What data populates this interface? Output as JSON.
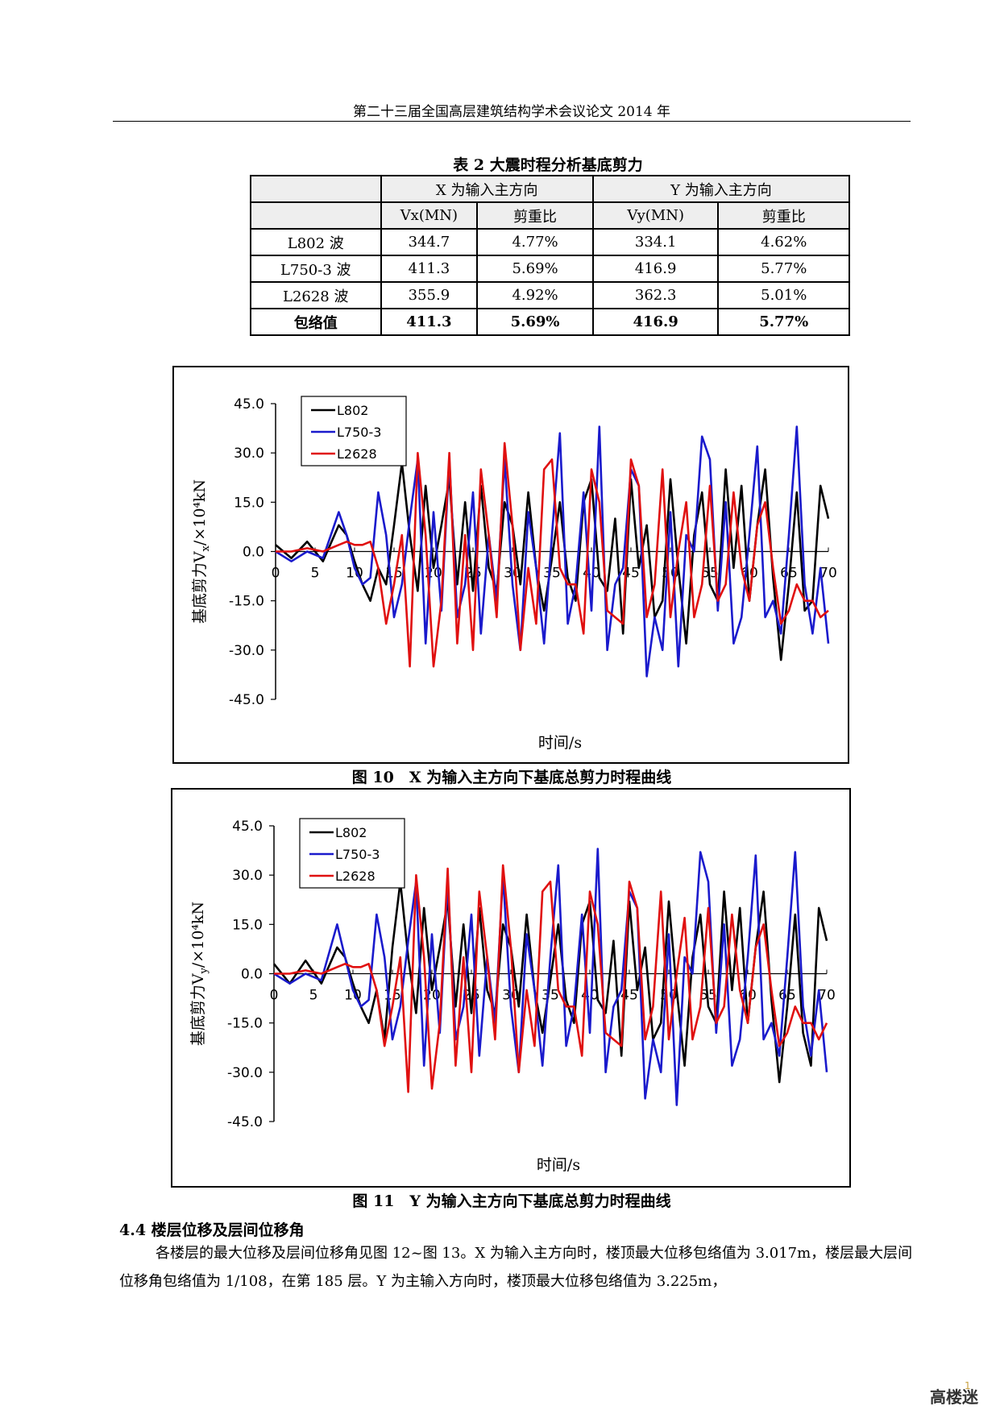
{
  "header": {
    "title": "第二十三届全国高层建筑结构学术会议论文 2014 年"
  },
  "table": {
    "caption": "表 2 大震时程分析基底剪力",
    "group_headers": [
      "X 为输入主方向",
      "Y 为输入主方向"
    ],
    "sub_headers": [
      "Vx(MN)",
      "剪重比",
      "Vy(MN)",
      "剪重比"
    ],
    "rows": [
      [
        "L802 波",
        "344.7",
        "4.77%",
        "334.1",
        "4.62%"
      ],
      [
        "L750-3 波",
        "411.3",
        "5.69%",
        "416.9",
        "5.77%"
      ],
      [
        "L2628 波",
        "355.9",
        "4.92%",
        "362.3",
        "5.01%"
      ],
      [
        "包络值",
        "411.3",
        "5.69%",
        "416.9",
        "5.77%"
      ]
    ]
  },
  "figures": [
    {
      "caption": "图 10　X 为输入主方向下基底总剪力时程曲线",
      "ylabel": "基底剪力V",
      "ylabel_sub": "x",
      "ylabel_unit": "/×10⁴kN",
      "xlabel": "时间/s"
    },
    {
      "caption": "图 11　Y 为输入主方向下基底总剪力时程曲线",
      "ylabel": "基底剪力V",
      "ylabel_sub": "y",
      "ylabel_unit": "/×10⁴kN",
      "xlabel": "时间/s"
    }
  ],
  "chart_data": [
    {
      "type": "line",
      "title": "",
      "xlabel": "时间/s",
      "ylabel": "基底剪力Vx/×10⁴kN",
      "xlim": [
        0,
        70
      ],
      "ylim": [
        -45,
        45
      ],
      "xticks": [
        "0",
        "5",
        "10",
        "15",
        "20",
        "25",
        "30",
        "35",
        "40",
        "45",
        "50",
        "55",
        "60",
        "65",
        "70"
      ],
      "yticks": [
        "45.0",
        "30.0",
        "15.0",
        "0.0",
        "-15.0",
        "-30.0",
        "-45.0"
      ],
      "legend_position": "top-left",
      "x": [
        0,
        2,
        4,
        6,
        8,
        9,
        10,
        11,
        12,
        13,
        14,
        15,
        16,
        17,
        18,
        19,
        20,
        21,
        22,
        23,
        24,
        25,
        26,
        27,
        28,
        29,
        30,
        31,
        32,
        33,
        34,
        35,
        36,
        37,
        38,
        39,
        40,
        41,
        42,
        43,
        44,
        45,
        46,
        47,
        48,
        49,
        50,
        51,
        52,
        53,
        54,
        55,
        56,
        57,
        58,
        59,
        60,
        61,
        62,
        63,
        64,
        65,
        66,
        67,
        68,
        69,
        70
      ],
      "series": [
        {
          "name": "L802",
          "color": "#000000",
          "values": [
            2,
            -2,
            3,
            -3,
            8,
            5,
            -3,
            -10,
            -15,
            -5,
            -10,
            8,
            27,
            5,
            -12,
            20,
            -5,
            8,
            22,
            -10,
            15,
            -12,
            20,
            -5,
            -12,
            15,
            8,
            -10,
            18,
            -5,
            -18,
            -2,
            15,
            -8,
            -15,
            15,
            22,
            -8,
            -12,
            10,
            -25,
            22,
            -5,
            8,
            -20,
            -15,
            22,
            -5,
            -28,
            5,
            18,
            -10,
            -15,
            25,
            -5,
            20,
            -15,
            8,
            25,
            -8,
            -33,
            -10,
            18,
            -18,
            -15,
            20,
            10
          ]
        },
        {
          "name": "L750-3",
          "color": "#1a1acc",
          "values": [
            0,
            -3,
            0,
            -2,
            12,
            5,
            -5,
            -10,
            -8,
            18,
            5,
            -20,
            -10,
            10,
            28,
            -28,
            12,
            -18,
            28,
            -20,
            -10,
            18,
            -25,
            5,
            -15,
            28,
            -10,
            -30,
            12,
            -5,
            -28,
            5,
            36,
            -22,
            -10,
            18,
            -18,
            38,
            -30,
            -10,
            -5,
            25,
            20,
            -38,
            -20,
            -30,
            12,
            -35,
            5,
            0,
            35,
            28,
            -18,
            15,
            -28,
            -20,
            5,
            32,
            -20,
            -15,
            -25,
            5,
            38,
            -10,
            -25,
            -5,
            -28
          ]
        },
        {
          "name": "L2628",
          "color": "#e01010",
          "values": [
            0,
            0,
            1,
            0,
            2,
            3,
            2,
            2,
            3,
            -5,
            -22,
            -10,
            5,
            -35,
            30,
            5,
            -35,
            -15,
            30,
            -28,
            5,
            -30,
            25,
            5,
            -20,
            33,
            8,
            -30,
            -5,
            -22,
            25,
            28,
            -5,
            -10,
            -10,
            -25,
            25,
            15,
            -18,
            -20,
            -22,
            28,
            20,
            -20,
            -10,
            25,
            -20,
            0,
            15,
            -20,
            -10,
            20,
            -15,
            -10,
            18,
            -5,
            -15,
            8,
            15,
            -5,
            -22,
            -18,
            -10,
            -15,
            -15,
            -20,
            -18
          ]
        }
      ]
    },
    {
      "type": "line",
      "title": "",
      "xlabel": "时间/s",
      "ylabel": "基底剪力Vy/×10⁴kN",
      "xlim": [
        0,
        70
      ],
      "ylim": [
        -45,
        45
      ],
      "xticks": [
        "0",
        "5",
        "10",
        "15",
        "20",
        "25",
        "30",
        "35",
        "40",
        "45",
        "50",
        "55",
        "60",
        "65",
        "70"
      ],
      "yticks": [
        "45.0",
        "30.0",
        "15.0",
        "0.0",
        "-15.0",
        "-30.0",
        "-45.0"
      ],
      "legend_position": "top-left",
      "x": [
        0,
        2,
        4,
        6,
        8,
        9,
        10,
        11,
        12,
        13,
        14,
        15,
        16,
        17,
        18,
        19,
        20,
        21,
        22,
        23,
        24,
        25,
        26,
        27,
        28,
        29,
        30,
        31,
        32,
        33,
        34,
        35,
        36,
        37,
        38,
        39,
        40,
        41,
        42,
        43,
        44,
        45,
        46,
        47,
        48,
        49,
        50,
        51,
        52,
        53,
        54,
        55,
        56,
        57,
        58,
        59,
        60,
        61,
        62,
        63,
        64,
        65,
        66,
        67,
        68,
        69,
        70
      ],
      "series": [
        {
          "name": "L802",
          "color": "#000000",
          "values": [
            3,
            -3,
            4,
            -3,
            8,
            5,
            -3,
            -10,
            -15,
            -5,
            -20,
            8,
            28,
            5,
            -12,
            20,
            -5,
            8,
            22,
            -10,
            15,
            -12,
            20,
            -5,
            -12,
            15,
            8,
            -10,
            18,
            -5,
            -18,
            -2,
            15,
            -8,
            -15,
            15,
            22,
            -8,
            -12,
            10,
            -25,
            22,
            -5,
            8,
            -20,
            -15,
            22,
            -5,
            -28,
            5,
            18,
            -10,
            -15,
            25,
            -5,
            20,
            -15,
            8,
            25,
            -8,
            -33,
            -10,
            18,
            -18,
            -28,
            20,
            10
          ]
        },
        {
          "name": "L750-3",
          "color": "#1a1acc",
          "values": [
            0,
            -3,
            0,
            -2,
            15,
            5,
            -5,
            -10,
            -8,
            18,
            5,
            -20,
            -10,
            10,
            28,
            -28,
            12,
            -18,
            28,
            -20,
            -10,
            18,
            -25,
            5,
            -15,
            30,
            -10,
            -30,
            12,
            -5,
            -28,
            5,
            33,
            -22,
            -10,
            18,
            -18,
            38,
            -30,
            -10,
            -5,
            25,
            20,
            -38,
            -20,
            -30,
            12,
            -40,
            5,
            0,
            37,
            28,
            -18,
            15,
            -28,
            -20,
            5,
            36,
            -20,
            -15,
            -25,
            5,
            37,
            -10,
            -25,
            -5,
            -30
          ]
        },
        {
          "name": "L2628",
          "color": "#e01010",
          "values": [
            0,
            0,
            1,
            0,
            2,
            3,
            2,
            2,
            3,
            -5,
            -22,
            -10,
            5,
            -36,
            30,
            5,
            -35,
            -15,
            32,
            -28,
            5,
            -30,
            25,
            5,
            -20,
            33,
            8,
            -30,
            -5,
            -22,
            25,
            28,
            -5,
            -10,
            -10,
            -25,
            25,
            15,
            -18,
            -20,
            -22,
            28,
            20,
            -20,
            -10,
            25,
            -20,
            0,
            17,
            -20,
            -10,
            20,
            -15,
            -10,
            18,
            -5,
            -15,
            8,
            15,
            -5,
            -22,
            -18,
            -10,
            -15,
            -15,
            -20,
            -15
          ]
        }
      ]
    }
  ],
  "section": {
    "heading": "4.4 楼层位移及层间位移角",
    "paragraph": "各楼层的最大位移及层间位移角见图 12~图 13。X 为输入主方向时，楼顶最大位移包络值为 3.017m，楼层最大层间位移角包络值为 1/108，在第 185 层。Y 为主输入方向时，楼顶最大位移包络值为 3.225m，"
  },
  "watermark": {
    "text": "高楼迷"
  }
}
